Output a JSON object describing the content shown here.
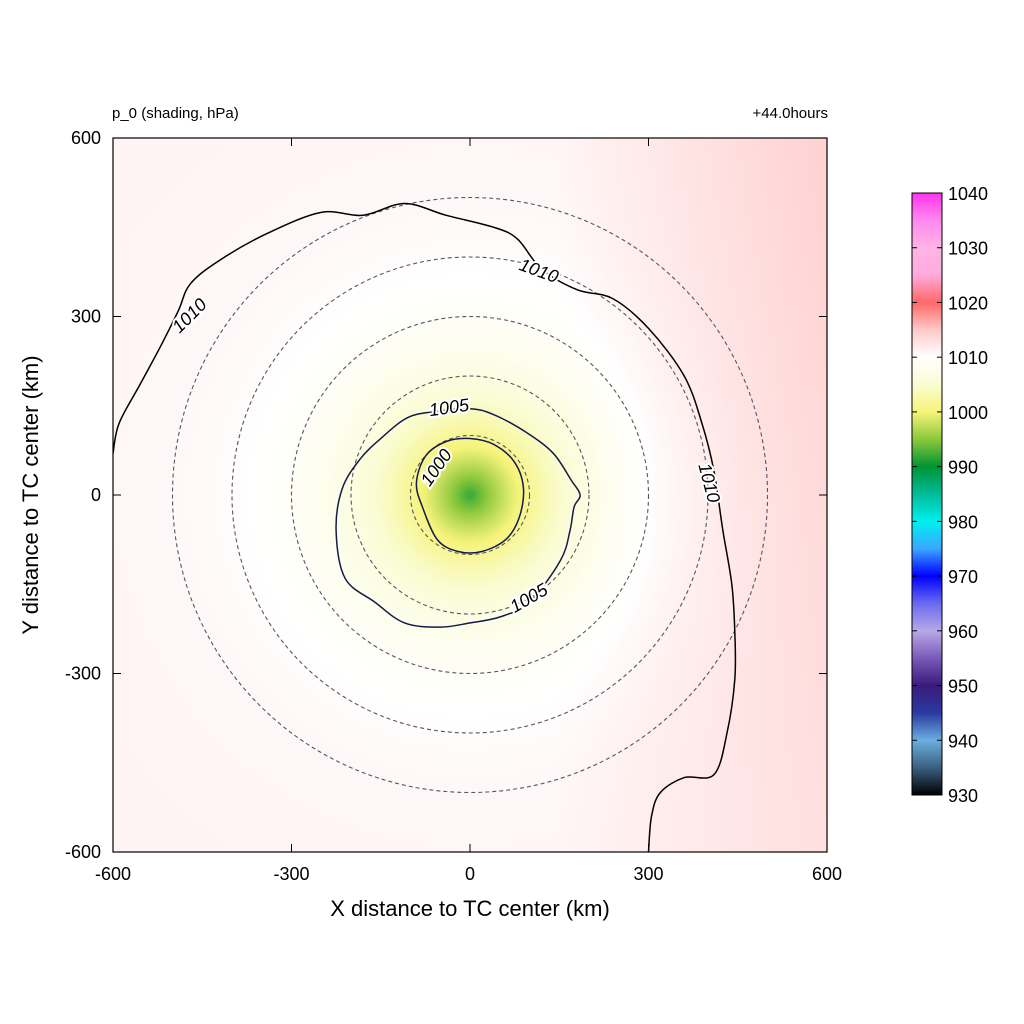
{
  "chart_data": {
    "type": "heatmap",
    "title_left": "p_0 (shading, hPa)",
    "title_right": "+44.0hours",
    "xlabel": "X distance to TC center (km)",
    "ylabel": "Y distance to TC center (km)",
    "xlim": [
      -600,
      600
    ],
    "ylim": [
      -600,
      600
    ],
    "xticks": [
      "-600",
      "-300",
      "0",
      "300",
      "600"
    ],
    "yticks": [
      "600",
      "300",
      "0",
      "-300",
      "-600"
    ],
    "xtick_values": [
      -600,
      -300,
      0,
      300,
      600
    ],
    "ytick_values": [
      600,
      300,
      0,
      -300,
      -600
    ],
    "center_pressure_hPa": 992,
    "ambient_pressure_hPa": 1011,
    "range_rings_km": [
      100,
      200,
      300,
      400,
      500
    ],
    "contours": [
      {
        "level": 1000,
        "label": "1000",
        "color": "#141a4a",
        "points": [
          [
            -80,
            -20
          ],
          [
            -90,
            20
          ],
          [
            -75,
            65
          ],
          [
            -40,
            90
          ],
          [
            0,
            95
          ],
          [
            40,
            85
          ],
          [
            75,
            55
          ],
          [
            90,
            10
          ],
          [
            82,
            -40
          ],
          [
            60,
            -75
          ],
          [
            20,
            -95
          ],
          [
            -20,
            -95
          ],
          [
            -55,
            -75
          ]
        ]
      },
      {
        "level": 1005,
        "label": "1005",
        "color": "#141a4a",
        "points": [
          [
            -210,
            -140
          ],
          [
            -225,
            -60
          ],
          [
            -215,
            10
          ],
          [
            -185,
            60
          ],
          [
            -150,
            95
          ],
          [
            -105,
            130
          ],
          [
            -60,
            140
          ],
          [
            0,
            145
          ],
          [
            40,
            135
          ],
          [
            95,
            105
          ],
          [
            140,
            70
          ],
          [
            170,
            25
          ],
          [
            185,
            0
          ],
          [
            175,
            -20
          ],
          [
            168,
            -60
          ],
          [
            152,
            -110
          ],
          [
            100,
            -180
          ],
          [
            50,
            -205
          ],
          [
            0,
            -215
          ],
          [
            -50,
            -222
          ],
          [
            -110,
            -215
          ],
          [
            -160,
            -180
          ]
        ]
      },
      {
        "level": 1010,
        "label": "1010",
        "color": "#000000",
        "points": [
          [
            -600,
            70
          ],
          [
            -590,
            120
          ],
          [
            -555,
            185
          ],
          [
            -520,
            250
          ],
          [
            -490,
            310
          ],
          [
            -470,
            355
          ],
          [
            -420,
            395
          ],
          [
            -340,
            440
          ],
          [
            -250,
            475
          ],
          [
            -180,
            470
          ],
          [
            -110,
            490
          ],
          [
            -40,
            470
          ],
          [
            40,
            450
          ],
          [
            80,
            430
          ],
          [
            120,
            380
          ],
          [
            180,
            345
          ],
          [
            240,
            330
          ],
          [
            300,
            280
          ],
          [
            360,
            200
          ],
          [
            390,
            120
          ],
          [
            410,
            40
          ],
          [
            425,
            -60
          ],
          [
            440,
            -150
          ],
          [
            445,
            -230
          ],
          [
            445,
            -310
          ],
          [
            432,
            -400
          ],
          [
            410,
            -470
          ],
          [
            360,
            -475
          ],
          [
            320,
            -500
          ],
          [
            305,
            -540
          ],
          [
            300,
            -600
          ]
        ]
      }
    ],
    "contour_labels": [
      {
        "text": "1010",
        "x": -470,
        "y": 300,
        "angle": -45
      },
      {
        "text": "1010",
        "x": 115,
        "y": 375,
        "angle": 20
      },
      {
        "text": "1010",
        "x": 400,
        "y": 20,
        "angle": 75
      },
      {
        "text": "1005",
        "x": -35,
        "y": 145,
        "angle": -8
      },
      {
        "text": "1005",
        "x": 100,
        "y": -175,
        "angle": -30
      },
      {
        "text": "1000",
        "x": -55,
        "y": 45,
        "angle": -55
      }
    ],
    "colorbar": {
      "min": 930,
      "max": 1040,
      "ticks": [
        "1040",
        "1030",
        "1020",
        "1010",
        "1000",
        "990",
        "980",
        "970",
        "960",
        "950",
        "940",
        "930"
      ],
      "tick_values": [
        1040,
        1030,
        1020,
        1010,
        1000,
        990,
        980,
        970,
        960,
        950,
        940,
        930
      ],
      "stops": [
        {
          "value": 930,
          "color": "#000000"
        },
        {
          "value": 935,
          "color": "#3a6080"
        },
        {
          "value": 940,
          "color": "#6aaee0"
        },
        {
          "value": 945,
          "color": "#2a3aa0"
        },
        {
          "value": 950,
          "color": "#3a1a7a"
        },
        {
          "value": 955,
          "color": "#7a5ab8"
        },
        {
          "value": 960,
          "color": "#b8a8e6"
        },
        {
          "value": 965,
          "color": "#6a6af0"
        },
        {
          "value": 970,
          "color": "#0000ff"
        },
        {
          "value": 975,
          "color": "#3aa6ff"
        },
        {
          "value": 980,
          "color": "#00f0ee"
        },
        {
          "value": 985,
          "color": "#00bb99"
        },
        {
          "value": 990,
          "color": "#009433"
        },
        {
          "value": 995,
          "color": "#8cc83c"
        },
        {
          "value": 1000,
          "color": "#f6f47a"
        },
        {
          "value": 1005,
          "color": "#fafcd2"
        },
        {
          "value": 1010,
          "color": "#ffffff"
        },
        {
          "value": 1015,
          "color": "#ffc8c8"
        },
        {
          "value": 1020,
          "color": "#ff6868"
        },
        {
          "value": 1025,
          "color": "#ffaadd"
        },
        {
          "value": 1030,
          "color": "#ffb4e6"
        },
        {
          "value": 1035,
          "color": "#ff88ee"
        },
        {
          "value": 1040,
          "color": "#ff33ee"
        }
      ]
    },
    "grid": false,
    "legend": "colorbar-right"
  }
}
